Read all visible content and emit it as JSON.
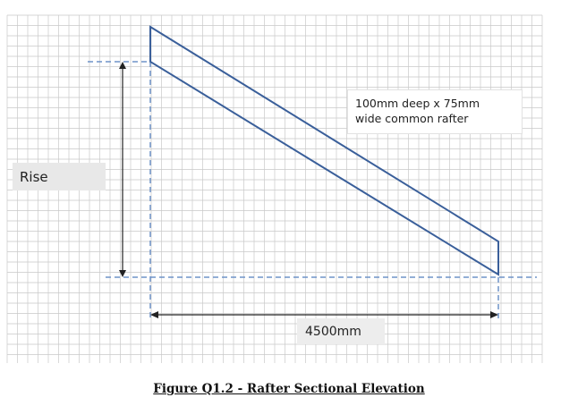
{
  "rise_label": "Rise",
  "span_label": "4500mm",
  "rafter_note": {
    "line1": "100mm deep x 75mm",
    "line2": "wide common rafter"
  },
  "caption": "Figure Q1.2 - Rafter Sectional Elevation",
  "colors": {
    "rafter_stroke": "#3a5f9a",
    "grid": "#c9c9c9",
    "dashed": "#6f93c8",
    "dimension": "#222222",
    "label_background": "#e8e8e8"
  },
  "grid": true
}
